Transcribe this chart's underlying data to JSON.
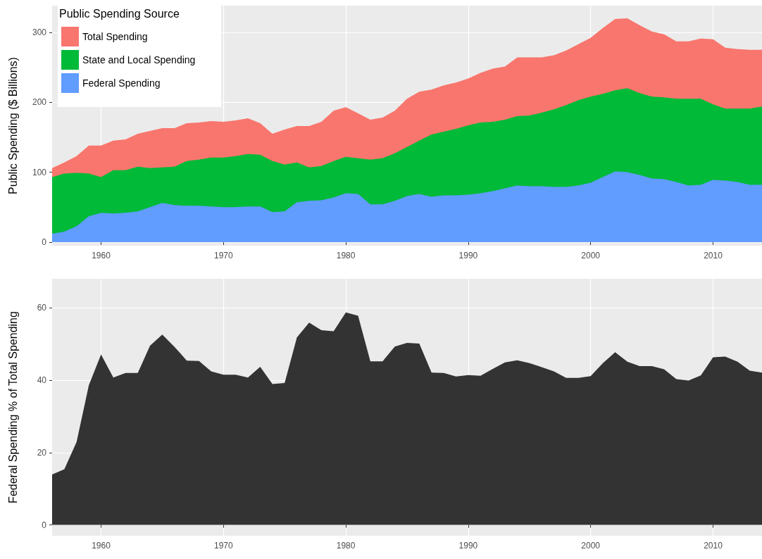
{
  "chart_data": [
    {
      "type": "area",
      "ylabel": "Public Spending ($ Billions)",
      "legend_title": "Public Spending Source",
      "legend": "top left",
      "grid": true,
      "x": [
        1956,
        1957,
        1958,
        1959,
        1960,
        1961,
        1962,
        1963,
        1964,
        1965,
        1966,
        1967,
        1968,
        1969,
        1970,
        1971,
        1972,
        1973,
        1974,
        1975,
        1976,
        1977,
        1978,
        1979,
        1980,
        1981,
        1982,
        1983,
        1984,
        1985,
        1986,
        1987,
        1988,
        1989,
        1990,
        1991,
        1992,
        1993,
        1994,
        1995,
        1996,
        1997,
        1998,
        1999,
        2000,
        2001,
        2002,
        2003,
        2004,
        2005,
        2006,
        2007,
        2008,
        2009,
        2010,
        2011,
        2012,
        2013,
        2014
      ],
      "xlim": [
        1956,
        2014
      ],
      "xticks": [
        1960,
        1970,
        1980,
        1990,
        2000,
        2010
      ],
      "ylim": [
        -5,
        338
      ],
      "yticks": [
        0,
        100,
        200,
        300
      ],
      "series": [
        {
          "name": "Total Spending",
          "color": "#f8766d",
          "values": [
            106,
            114,
            123,
            138,
            138,
            145,
            147,
            155,
            159,
            163,
            163,
            170,
            171,
            173,
            172,
            174,
            177,
            170,
            155,
            161,
            166,
            166,
            172,
            188,
            193,
            184,
            175,
            178,
            188,
            205,
            215,
            218,
            224,
            228,
            234,
            242,
            248,
            251,
            264,
            264,
            264,
            267,
            274,
            283,
            292,
            306,
            319,
            320,
            310,
            301,
            297,
            287,
            287,
            291,
            290,
            278,
            276,
            275,
            275
          ]
        },
        {
          "name": "State and Local Spending",
          "color": "#00ba38",
          "values": [
            93,
            98,
            99,
            98,
            93,
            103,
            103,
            108,
            106,
            107,
            108,
            116,
            118,
            121,
            121,
            123,
            126,
            125,
            116,
            111,
            114,
            107,
            109,
            116,
            122,
            120,
            118,
            120,
            127,
            136,
            145,
            154,
            158,
            162,
            167,
            171,
            172,
            175,
            180,
            181,
            185,
            190,
            196,
            203,
            208,
            212,
            217,
            220,
            213,
            208,
            207,
            205,
            205,
            205,
            197,
            191,
            191,
            191,
            194
          ]
        },
        {
          "name": "Federal Spending",
          "color": "#619cff",
          "values": [
            12,
            15,
            23,
            37,
            42,
            41,
            42,
            44,
            50,
            56,
            53,
            52,
            52,
            51,
            50,
            50,
            51,
            51,
            43,
            44,
            57,
            59,
            60,
            64,
            70,
            69,
            54,
            54,
            59,
            66,
            69,
            65,
            67,
            67,
            68,
            70,
            73,
            77,
            81,
            80,
            80,
            79,
            79,
            81,
            85,
            93,
            101,
            100,
            96,
            91,
            90,
            86,
            81,
            82,
            89,
            88,
            86,
            82,
            82
          ]
        }
      ]
    },
    {
      "type": "area",
      "ylabel": "Federal Spending % of Total Spending",
      "grid": true,
      "legend": false,
      "x": [
        1956,
        1957,
        1958,
        1959,
        1960,
        1961,
        1962,
        1963,
        1964,
        1965,
        1966,
        1967,
        1968,
        1969,
        1970,
        1971,
        1972,
        1973,
        1974,
        1975,
        1976,
        1977,
        1978,
        1979,
        1980,
        1981,
        1982,
        1983,
        1984,
        1985,
        1986,
        1987,
        1988,
        1989,
        1990,
        1991,
        1992,
        1993,
        1994,
        1995,
        1996,
        1997,
        1998,
        1999,
        2000,
        2001,
        2002,
        2003,
        2004,
        2005,
        2006,
        2007,
        2008,
        2009,
        2010,
        2011,
        2012,
        2013,
        2014
      ],
      "xlim": [
        1956,
        2014
      ],
      "xticks": [
        1960,
        1970,
        1980,
        1990,
        2000,
        2010
      ],
      "ylim": [
        -3,
        68
      ],
      "yticks": [
        0,
        20,
        40,
        60
      ],
      "series": [
        {
          "color": "#333333",
          "values": [
            13.9,
            15.4,
            22.9,
            38.6,
            47.1,
            40.7,
            42,
            42,
            49.5,
            52.6,
            49.2,
            45.4,
            45.3,
            42.4,
            41.5,
            41.5,
            40.7,
            43.7,
            38.9,
            39.2,
            51.8,
            55.9,
            53.8,
            53.5,
            58.7,
            57.8,
            45.2,
            45.2,
            49.3,
            50.3,
            50.1,
            42.1,
            42,
            41,
            41.4,
            41.2,
            43.1,
            44.9,
            45.5,
            44.7,
            43.6,
            42.4,
            40.6,
            40.6,
            41.1,
            44.7,
            47.7,
            45.1,
            43.9,
            43.9,
            43,
            40.3,
            39.9,
            41.3,
            46.3,
            46.5,
            45.1,
            42.6,
            42.1
          ]
        }
      ]
    }
  ]
}
